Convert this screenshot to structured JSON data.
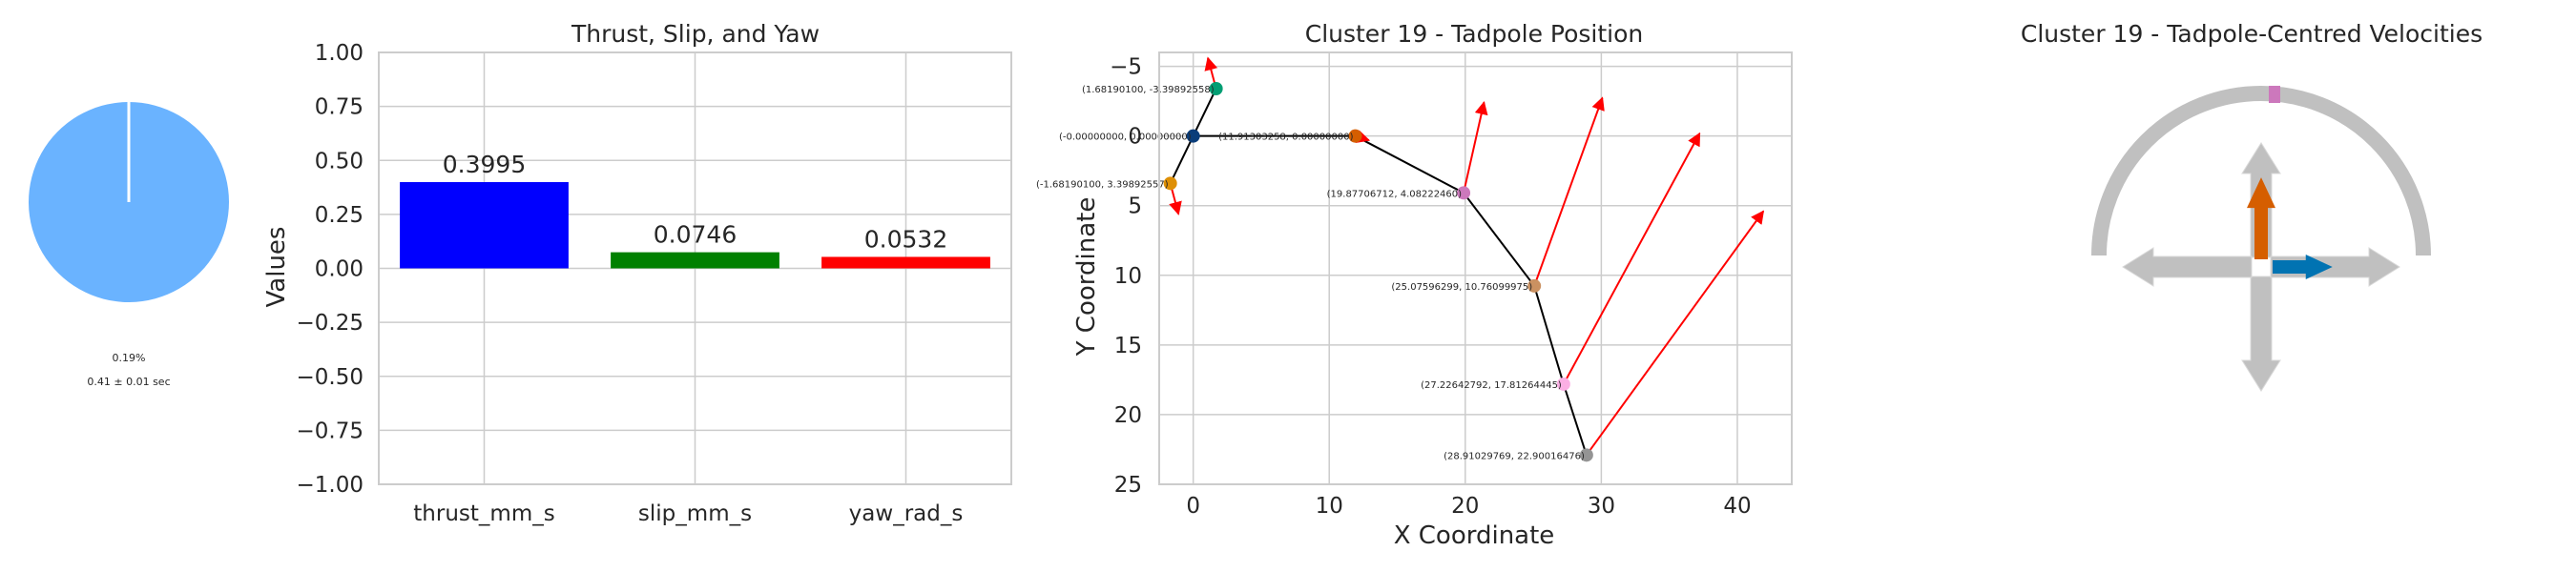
{
  "panels": {
    "pie": {
      "percent_label": "0.19%",
      "duration_label": "0.41 ± 0.01 sec",
      "color_main": "#6ab3ff",
      "color_slice": "#ffffff"
    },
    "bar": {
      "title": "Thrust, Slip, and Yaw",
      "ylabel": "Values"
    },
    "position": {
      "title": "Cluster 19 - Tadpole Position",
      "xlabel": "X Coordinate",
      "ylabel": "Y Coordinate"
    },
    "velocity": {
      "title": "Cluster 19 - Tadpole-Centred Velocities"
    }
  },
  "chart_data": [
    {
      "type": "pie",
      "values": [
        99.81,
        0.19
      ],
      "labels": [
        "",
        "0.19%"
      ],
      "colors": [
        "#6ab3ff",
        "#ffffff"
      ]
    },
    {
      "type": "bar",
      "title": "Thrust, Slip, and Yaw",
      "xlabel": "",
      "ylabel": "Values",
      "categories": [
        "thrust_mm_s",
        "slip_mm_s",
        "yaw_rad_s"
      ],
      "values": [
        0.3995,
        0.0746,
        0.0532
      ],
      "value_labels": [
        "0.3995",
        "0.0746",
        "0.0532"
      ],
      "colors": [
        "#0000ff",
        "#008000",
        "#ff0000"
      ],
      "ylim": [
        -1.0,
        1.0
      ],
      "yticks": [
        "−1.00",
        "−0.75",
        "−0.50",
        "−0.25",
        "0.00",
        "0.25",
        "0.50",
        "0.75",
        "1.00"
      ],
      "grid": true
    },
    {
      "type": "scatter",
      "title": "Cluster 19 - Tadpole Position",
      "xlabel": "X Coordinate",
      "ylabel": "Y Coordinate",
      "xlim": [
        -2.5,
        44
      ],
      "ylim": [
        25,
        -6
      ],
      "y_inverted": true,
      "xticks": [
        "0",
        "10",
        "20",
        "30",
        "40"
      ],
      "yticks": [
        "−5",
        "0",
        "5",
        "10",
        "15",
        "20",
        "25"
      ],
      "grid": true,
      "points": [
        {
          "x": 1.6819,
          "y": -3.39893,
          "label": "(1.68190100, -3.39892558)",
          "color": "#029e73"
        },
        {
          "x": 0.0,
          "y": 0.0,
          "label": "(-0.00000000, 0.00000000)",
          "color": "#0a3d7a"
        },
        {
          "x": -1.6819,
          "y": 3.39893,
          "label": "(-1.68190100, 3.39892557)",
          "color": "#de8f05"
        },
        {
          "x": 11.91303,
          "y": 0.0,
          "label": "(11.91303258, 0.00000000)",
          "color": "#d55e00"
        },
        {
          "x": 19.87707,
          "y": 4.08222,
          "label": "(19.87706712, 4.08222460)",
          "color": "#cc78bc"
        },
        {
          "x": 25.07596,
          "y": 10.761,
          "label": "(25.07596299, 10.76099975)",
          "color": "#ca9161"
        },
        {
          "x": 27.22643,
          "y": 17.81264,
          "label": "(27.22642792, 17.81264445)",
          "color": "#fbafe4"
        },
        {
          "x": 28.9103,
          "y": 22.90016,
          "label": "(28.91029769, 22.90016476)",
          "color": "#949494"
        }
      ],
      "vectors": [
        {
          "x": 1.6819,
          "y": -3.39893,
          "dx": -0.6,
          "dy": -2.2
        },
        {
          "x": -1.6819,
          "y": 3.39893,
          "dx": 0.6,
          "dy": 2.2
        },
        {
          "x": 11.91303,
          "y": 0.0,
          "dx": 1.0,
          "dy": 0.3
        },
        {
          "x": 19.87707,
          "y": 4.08222,
          "dx": 1.5,
          "dy": -6.5
        },
        {
          "x": 25.07596,
          "y": 10.761,
          "dx": 5.0,
          "dy": -13.5
        },
        {
          "x": 27.22643,
          "y": 17.81264,
          "dx": 10.0,
          "dy": -18.0
        },
        {
          "x": 28.9103,
          "y": 22.90016,
          "dx": 13.0,
          "dy": -17.5
        }
      ]
    },
    {
      "type": "other",
      "title": "Cluster 19 - Tadpole-Centred Velocities",
      "forward": 0.3995,
      "lateral": 0.0746,
      "yaw_marker": 0.0532,
      "forward_color": "#d55e00",
      "lateral_color": "#0173b2",
      "yaw_color": "#cc78bc",
      "guide_color": "#c0c0c0"
    }
  ]
}
